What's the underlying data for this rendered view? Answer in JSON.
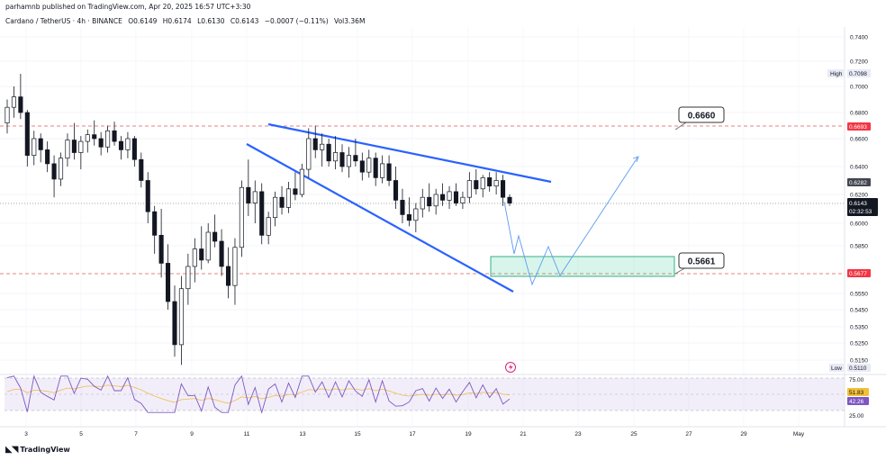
{
  "header": {
    "published": "parhamnb published on TradingView.com, Apr 20, 2025 16:57 UTC+3:30",
    "symbol": "Cardano / TetherUS · 4h · BINANCE",
    "open": "O0.6149",
    "high": "H0.6174",
    "low": "L0.6130",
    "close": "C0.6143",
    "change": "−0.0007 (−0.11%)",
    "volume": "Vol3.36M"
  },
  "brand": "TradingView",
  "chart_data": {
    "type": "candlestick",
    "title": "Cardano / TetherUS · 4h · BINANCE",
    "y_ticks": [
      "0.7400",
      "0.7200",
      "0.7000",
      "0.6800",
      "0.6600",
      "0.6400",
      "0.6200",
      "0.6000",
      "0.5850",
      "0.5550",
      "0.5450",
      "0.5350",
      "0.5250",
      "0.5150"
    ],
    "x_ticks": [
      "3",
      "5",
      "7",
      "9",
      "11",
      "13",
      "15",
      "17",
      "19",
      "21",
      "23",
      "25",
      "27",
      "29",
      "May"
    ],
    "price_labels": {
      "high_label": "High",
      "high_value": "0.7098",
      "resistance": "0.6693",
      "mid": "0.6282",
      "current": "0.6143",
      "countdown": "02:32:53",
      "support": "0.5677",
      "low_label": "Low",
      "low_value": "0.5110"
    },
    "annotations": {
      "target_label": "0.6660",
      "zone_label": "0.5661"
    },
    "rsi": {
      "ticks": [
        "75.00",
        "25.00"
      ],
      "value": "51.83",
      "signal": "42.26"
    },
    "candles": [
      [
        0.672,
        0.69,
        0.664,
        0.684
      ],
      [
        0.684,
        0.7,
        0.676,
        0.692
      ],
      [
        0.692,
        0.71,
        0.675,
        0.68
      ],
      [
        0.68,
        0.682,
        0.64,
        0.648
      ],
      [
        0.648,
        0.666,
        0.641,
        0.66
      ],
      [
        0.66,
        0.664,
        0.643,
        0.652
      ],
      [
        0.652,
        0.658,
        0.636,
        0.642
      ],
      [
        0.642,
        0.648,
        0.618,
        0.631
      ],
      [
        0.631,
        0.65,
        0.626,
        0.646
      ],
      [
        0.646,
        0.664,
        0.64,
        0.659
      ],
      [
        0.659,
        0.672,
        0.645,
        0.65
      ],
      [
        0.65,
        0.662,
        0.638,
        0.658
      ],
      [
        0.658,
        0.667,
        0.65,
        0.663
      ],
      [
        0.663,
        0.674,
        0.655,
        0.66
      ],
      [
        0.66,
        0.665,
        0.648,
        0.654
      ],
      [
        0.654,
        0.67,
        0.65,
        0.666
      ],
      [
        0.666,
        0.673,
        0.655,
        0.658
      ],
      [
        0.658,
        0.662,
        0.645,
        0.652
      ],
      [
        0.652,
        0.665,
        0.646,
        0.66
      ],
      [
        0.66,
        0.662,
        0.64,
        0.645
      ],
      [
        0.645,
        0.65,
        0.625,
        0.63
      ],
      [
        0.63,
        0.636,
        0.6,
        0.608
      ],
      [
        0.608,
        0.612,
        0.58,
        0.592
      ],
      [
        0.592,
        0.61,
        0.565,
        0.574
      ],
      [
        0.574,
        0.586,
        0.545,
        0.55
      ],
      [
        0.55,
        0.56,
        0.517,
        0.524
      ],
      [
        0.524,
        0.566,
        0.512,
        0.558
      ],
      [
        0.558,
        0.58,
        0.548,
        0.572
      ],
      [
        0.572,
        0.59,
        0.562,
        0.583
      ],
      [
        0.583,
        0.598,
        0.57,
        0.576
      ],
      [
        0.576,
        0.6,
        0.574,
        0.594
      ],
      [
        0.594,
        0.606,
        0.584,
        0.588
      ],
      [
        0.588,
        0.596,
        0.566,
        0.572
      ],
      [
        0.572,
        0.584,
        0.552,
        0.56
      ],
      [
        0.56,
        0.59,
        0.548,
        0.584
      ],
      [
        0.584,
        0.63,
        0.578,
        0.625
      ],
      [
        0.625,
        0.645,
        0.605,
        0.614
      ],
      [
        0.614,
        0.63,
        0.6,
        0.622
      ],
      [
        0.622,
        0.628,
        0.586,
        0.592
      ],
      [
        0.592,
        0.608,
        0.586,
        0.604
      ],
      [
        0.604,
        0.622,
        0.598,
        0.618
      ],
      [
        0.618,
        0.626,
        0.606,
        0.611
      ],
      [
        0.611,
        0.629,
        0.607,
        0.624
      ],
      [
        0.624,
        0.636,
        0.616,
        0.62
      ],
      [
        0.62,
        0.642,
        0.618,
        0.638
      ],
      [
        0.638,
        0.668,
        0.632,
        0.66
      ],
      [
        0.66,
        0.67,
        0.646,
        0.652
      ],
      [
        0.652,
        0.664,
        0.64,
        0.656
      ],
      [
        0.656,
        0.66,
        0.64,
        0.644
      ],
      [
        0.644,
        0.662,
        0.638,
        0.65
      ],
      [
        0.65,
        0.656,
        0.636,
        0.64
      ],
      [
        0.64,
        0.654,
        0.632,
        0.648
      ],
      [
        0.648,
        0.66,
        0.64,
        0.644
      ],
      [
        0.644,
        0.65,
        0.63,
        0.636
      ],
      [
        0.636,
        0.652,
        0.632,
        0.646
      ],
      [
        0.646,
        0.65,
        0.626,
        0.632
      ],
      [
        0.632,
        0.648,
        0.628,
        0.642
      ],
      [
        0.642,
        0.648,
        0.626,
        0.63
      ],
      [
        0.63,
        0.64,
        0.61,
        0.616
      ],
      [
        0.616,
        0.624,
        0.6,
        0.606
      ],
      [
        0.606,
        0.618,
        0.598,
        0.602
      ],
      [
        0.602,
        0.614,
        0.594,
        0.61
      ],
      [
        0.61,
        0.624,
        0.604,
        0.618
      ],
      [
        0.618,
        0.628,
        0.608,
        0.612
      ],
      [
        0.612,
        0.624,
        0.606,
        0.62
      ],
      [
        0.62,
        0.628,
        0.612,
        0.616
      ],
      [
        0.616,
        0.626,
        0.61,
        0.622
      ],
      [
        0.622,
        0.628,
        0.612,
        0.614
      ],
      [
        0.614,
        0.622,
        0.61,
        0.618
      ],
      [
        0.618,
        0.636,
        0.614,
        0.63
      ],
      [
        0.63,
        0.638,
        0.62,
        0.624
      ],
      [
        0.624,
        0.634,
        0.618,
        0.632
      ],
      [
        0.632,
        0.636,
        0.622,
        0.626
      ],
      [
        0.626,
        0.636,
        0.62,
        0.63
      ],
      [
        0.63,
        0.634,
        0.612,
        0.618
      ],
      [
        0.618,
        0.62,
        0.612,
        0.614
      ]
    ]
  }
}
